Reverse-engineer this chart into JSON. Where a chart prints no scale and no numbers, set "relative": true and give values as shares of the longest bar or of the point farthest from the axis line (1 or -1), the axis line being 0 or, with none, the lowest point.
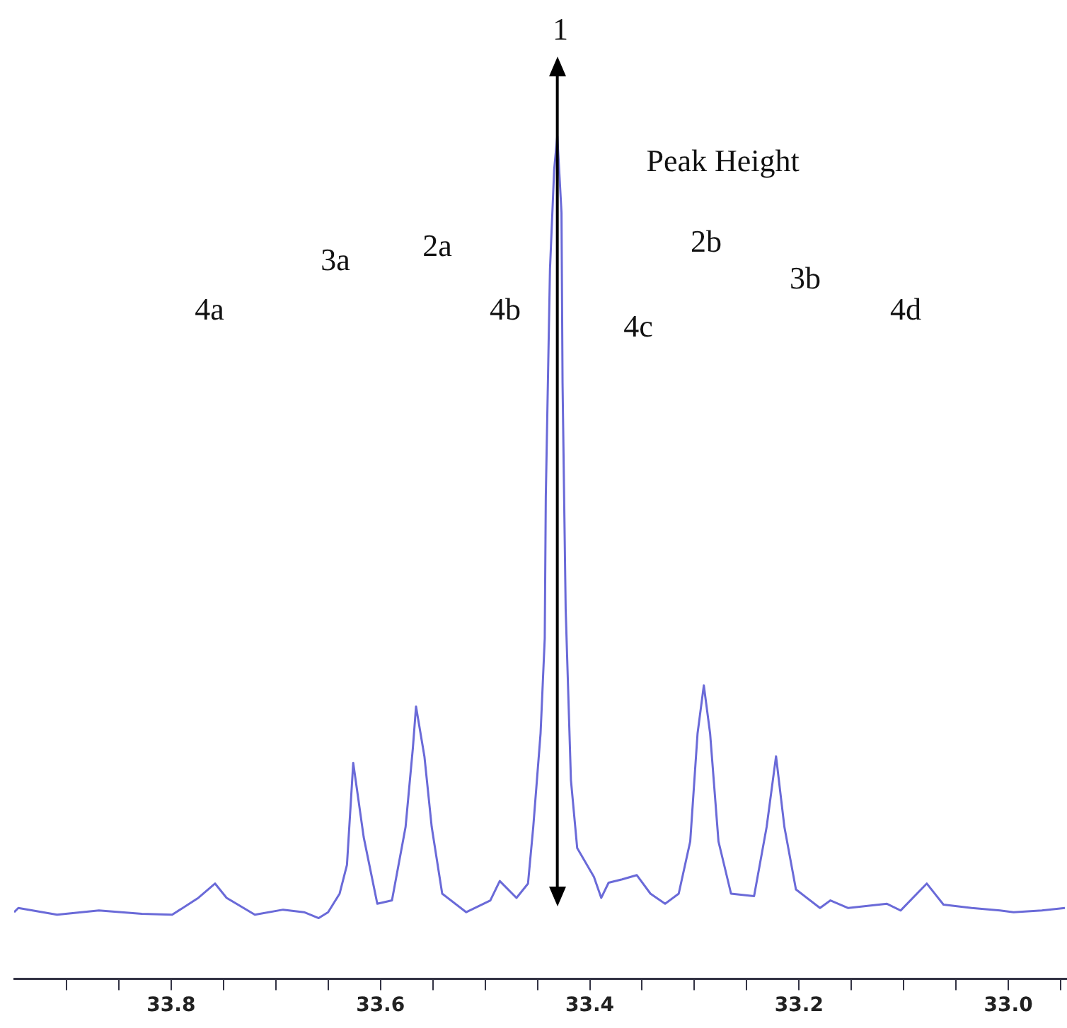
{
  "chart_data": {
    "type": "line",
    "relative": true,
    "color": "#6a6ad8",
    "marker": "none",
    "line_style": "solid",
    "grid": false,
    "legend": false,
    "xlim": [
      33.95,
      32.945
    ],
    "xticks": [
      {
        "value": 33.9,
        "label": null
      },
      {
        "value": 33.85,
        "label": null
      },
      {
        "value": 33.8,
        "label": "33.8"
      },
      {
        "value": 33.75,
        "label": null
      },
      {
        "value": 33.7,
        "label": null
      },
      {
        "value": 33.65,
        "label": null
      },
      {
        "value": 33.6,
        "label": "33.6"
      },
      {
        "value": 33.55,
        "label": null
      },
      {
        "value": 33.5,
        "label": null
      },
      {
        "value": 33.45,
        "label": null
      },
      {
        "value": 33.4,
        "label": "33.4"
      },
      {
        "value": 33.35,
        "label": null
      },
      {
        "value": 33.3,
        "label": null
      },
      {
        "value": 33.25,
        "label": null
      },
      {
        "value": 33.2,
        "label": "33.2"
      },
      {
        "value": 33.15,
        "label": null
      },
      {
        "value": 33.1,
        "label": null
      },
      {
        "value": 33.05,
        "label": null
      },
      {
        "value": 33.0,
        "label": "33.0"
      },
      {
        "value": 32.95,
        "label": null
      }
    ],
    "x": [
      33.95,
      33.946,
      33.909,
      33.869,
      33.828,
      33.799,
      33.774,
      33.758,
      33.747,
      33.72,
      33.693,
      33.673,
      33.659,
      33.65,
      33.639,
      33.632,
      33.626,
      33.616,
      33.603,
      33.589,
      33.576,
      33.569,
      33.566,
      33.558,
      33.551,
      33.541,
      33.518,
      33.495,
      33.486,
      33.47,
      33.459,
      33.454,
      33.447,
      33.443,
      33.442,
      33.438,
      33.434,
      33.431,
      33.427,
      33.426,
      33.423,
      33.418,
      33.412,
      33.396,
      33.389,
      33.382,
      33.369,
      33.355,
      33.342,
      33.328,
      33.315,
      33.304,
      33.297,
      33.291,
      33.285,
      33.277,
      33.265,
      33.243,
      33.231,
      33.222,
      33.214,
      33.203,
      33.18,
      33.17,
      33.153,
      33.116,
      33.103,
      33.078,
      33.062,
      33.035,
      33.008,
      32.995,
      32.968,
      32.946
    ],
    "values": [
      0.079,
      0.084,
      0.076,
      0.081,
      0.077,
      0.076,
      0.096,
      0.113,
      0.096,
      0.076,
      0.082,
      0.079,
      0.072,
      0.079,
      0.101,
      0.135,
      0.256,
      0.168,
      0.089,
      0.093,
      0.18,
      0.274,
      0.323,
      0.264,
      0.18,
      0.101,
      0.079,
      0.093,
      0.116,
      0.096,
      0.113,
      0.18,
      0.291,
      0.404,
      0.572,
      0.842,
      0.96,
      1,
      0.909,
      0.707,
      0.438,
      0.236,
      0.155,
      0.121,
      0.096,
      0.114,
      0.118,
      0.123,
      0.101,
      0.089,
      0.101,
      0.163,
      0.291,
      0.348,
      0.291,
      0.163,
      0.101,
      0.098,
      0.18,
      0.264,
      0.18,
      0.106,
      0.084,
      0.093,
      0.084,
      0.089,
      0.081,
      0.113,
      0.088,
      0.084,
      0.081,
      0.079,
      0.081,
      0.084
    ],
    "annotations": [
      "1",
      "4a",
      "3a",
      "2a",
      "4b",
      "4c",
      "2b",
      "3b",
      "4d"
    ],
    "ref_lines": [
      {
        "axis": "x",
        "value": 33.431,
        "label": "Peak Height",
        "color": "#000000"
      }
    ]
  }
}
